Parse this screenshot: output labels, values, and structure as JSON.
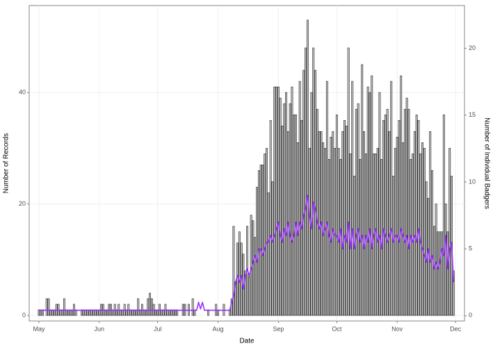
{
  "chart_data": {
    "type": "bar",
    "xlabel": "Date",
    "ylabel": "Number of Records",
    "y2label": "Number of Individual Badgers",
    "x": [
      0,
      1,
      2,
      3,
      4,
      5,
      6,
      7,
      8,
      9,
      10,
      11,
      12,
      13,
      14,
      15,
      16,
      17,
      18,
      19,
      20,
      21,
      22,
      23,
      24,
      25,
      26,
      27,
      28,
      29,
      30,
      31,
      32,
      33,
      34,
      35,
      36,
      37,
      38,
      39,
      40,
      41,
      42,
      43,
      44,
      45,
      46,
      47,
      48,
      49,
      50,
      51,
      52,
      53,
      54,
      55,
      56,
      57,
      58,
      59,
      60,
      61,
      62,
      63,
      64,
      65,
      66,
      67,
      68,
      69,
      70,
      71,
      72,
      73,
      74,
      75,
      76,
      77,
      78,
      79,
      80,
      81,
      82,
      83,
      84,
      85,
      86,
      87,
      88,
      89,
      90,
      91,
      92,
      93,
      94,
      95,
      96,
      97,
      98,
      99,
      100,
      101,
      102,
      103,
      104,
      105,
      106,
      107,
      108,
      109,
      110,
      111,
      112,
      113,
      114,
      115,
      116,
      117,
      118,
      119,
      120,
      121,
      122,
      123,
      124,
      125,
      126,
      127,
      128,
      129,
      130,
      131,
      132,
      133,
      134,
      135,
      136,
      137,
      138,
      139,
      140,
      141,
      142,
      143,
      144,
      145,
      146,
      147,
      148,
      149,
      150,
      151,
      152,
      153,
      154,
      155,
      156,
      157,
      158,
      159,
      160,
      161,
      162,
      163,
      164,
      165,
      166,
      167,
      168,
      169,
      170,
      171,
      172,
      173,
      174,
      175,
      176,
      177,
      178,
      179,
      180,
      181,
      182,
      183,
      184,
      185,
      186,
      187,
      188,
      189,
      190,
      191,
      192,
      193,
      194,
      195,
      196,
      197,
      198,
      199,
      200,
      201,
      202,
      203,
      204,
      205,
      206,
      207,
      208,
      209,
      210,
      211,
      212,
      213
    ],
    "series": [
      {
        "color": "#c8c8c8",
        "values": [
          1,
          1,
          1,
          0,
          3,
          3,
          1,
          1,
          1,
          2,
          2,
          1,
          1,
          3,
          1,
          1,
          1,
          1,
          2,
          1,
          0,
          0,
          1,
          1,
          1,
          1,
          1,
          1,
          1,
          1,
          1,
          1,
          2,
          2,
          1,
          1,
          2,
          2,
          1,
          2,
          1,
          2,
          1,
          1,
          2,
          1,
          2,
          1,
          1,
          1,
          1,
          3,
          1,
          2,
          1,
          1,
          3,
          4,
          3,
          2,
          1,
          1,
          2,
          1,
          1,
          2,
          1,
          1,
          1,
          1,
          1,
          1,
          0,
          0,
          2,
          2,
          0,
          2,
          0,
          3,
          1,
          0,
          0,
          0,
          0,
          0,
          0,
          1,
          0,
          0,
          0,
          2,
          1,
          0,
          0,
          2,
          0,
          0,
          1,
          3,
          16,
          6,
          13,
          15,
          13,
          11,
          8,
          16,
          7,
          18,
          17,
          14,
          23,
          26,
          27,
          27,
          29,
          30,
          22,
          35,
          24,
          41,
          41,
          41,
          39,
          34,
          38,
          40,
          33,
          38,
          41,
          36,
          36,
          31,
          42,
          35,
          44,
          48,
          53,
          30,
          40,
          48,
          44,
          37,
          33,
          33,
          31,
          30,
          42,
          28,
          32,
          33,
          30,
          36,
          30,
          28,
          33,
          35,
          34,
          48,
          29,
          42,
          25,
          37,
          38,
          28,
          45,
          33,
          29,
          41,
          40,
          43,
          29,
          29,
          30,
          40,
          28,
          35,
          36,
          37,
          33,
          42,
          25,
          30,
          32,
          35,
          43,
          31,
          37,
          39,
          37,
          28,
          29,
          33,
          36,
          35,
          29,
          31,
          30,
          24,
          21,
          33,
          26,
          16,
          20,
          15,
          15,
          15,
          36,
          20,
          15,
          30,
          25,
          8
        ]
      },
      {
        "color": "#9b30ff",
        "axis": "y2",
        "type": "line",
        "values": [
          0.4,
          0.4,
          0.4,
          0.4,
          0.4,
          0.4,
          0.4,
          0.4,
          0.4,
          0.4,
          0.4,
          0.4,
          0.4,
          0.4,
          0.4,
          0.4,
          0.4,
          0.4,
          0.4,
          0.4,
          0.4,
          0.4,
          0.4,
          0.4,
          0.4,
          0.4,
          0.4,
          0.4,
          0.4,
          0.4,
          0.4,
          0.4,
          0.4,
          0.4,
          0.4,
          0.4,
          0.4,
          0.4,
          0.4,
          0.4,
          0.4,
          0.4,
          0.4,
          0.4,
          0.4,
          0.4,
          0.4,
          0.4,
          0.4,
          0.4,
          0.4,
          0.4,
          0.4,
          0.4,
          0.4,
          0.4,
          0.4,
          0.4,
          0.4,
          0.4,
          0.4,
          0.4,
          0.4,
          0.4,
          0.4,
          0.4,
          0.4,
          0.4,
          0.4,
          0.4,
          0.4,
          0.4,
          0.4,
          0.4,
          0.4,
          0.4,
          0.4,
          0.4,
          0.4,
          0.4,
          0.4,
          0.4,
          1,
          0.5,
          1,
          0.4,
          0.4,
          0.4,
          0.4,
          0.4,
          0.4,
          0.4,
          0.4,
          0.4,
          0.4,
          0.4,
          0.4,
          0.4,
          0.4,
          1,
          1.5,
          2.5,
          3,
          2.5,
          3,
          2,
          3,
          3.5,
          3,
          3.5,
          4,
          4.5,
          4,
          5,
          5,
          4.5,
          5,
          5.5,
          5.5,
          6,
          5.5,
          6,
          6.5,
          7,
          6,
          5.5,
          6.5,
          6,
          7,
          6,
          5.5,
          6,
          7,
          6,
          7,
          6.5,
          7.5,
          8,
          9,
          7.5,
          6.5,
          8.5,
          8,
          7,
          6.5,
          7,
          6,
          6.5,
          7,
          6,
          5.5,
          6.5,
          6,
          6,
          5.5,
          6.5,
          5,
          6,
          5.5,
          7,
          5,
          6.5,
          5,
          6,
          6.5,
          5.5,
          6,
          5,
          6,
          5.5,
          6.5,
          5,
          6,
          6.5,
          5.5,
          6,
          5,
          6.5,
          6,
          5.5,
          6,
          6.5,
          5.5,
          6,
          6,
          5.5,
          6.5,
          6,
          5.5,
          6,
          5,
          6,
          5.5,
          6,
          5.5,
          6.5,
          5.5,
          5,
          4.5,
          4,
          5,
          4,
          4.5,
          3.5,
          4,
          3.5,
          4,
          5,
          4.5,
          6,
          3.5,
          5,
          5.5,
          2.5
        ]
      }
    ],
    "xlim": [
      -5,
      218.6
    ],
    "xticks": [
      {
        "value": 0,
        "label": "May"
      },
      {
        "value": 31,
        "label": "Jun"
      },
      {
        "value": 61,
        "label": "Jul"
      },
      {
        "value": 92,
        "label": "Aug"
      },
      {
        "value": 123,
        "label": "Sep"
      },
      {
        "value": 153,
        "label": "Oct"
      },
      {
        "value": 184,
        "label": "Nov"
      },
      {
        "value": 214,
        "label": "Dec"
      }
    ],
    "ylim": [
      -1,
      55.6
    ],
    "yticks": [
      0,
      20,
      40
    ],
    "y2lim": [
      -0.4,
      23.2
    ],
    "y2ticks": [
      0,
      5,
      10,
      15,
      20
    ],
    "grid": true
  }
}
